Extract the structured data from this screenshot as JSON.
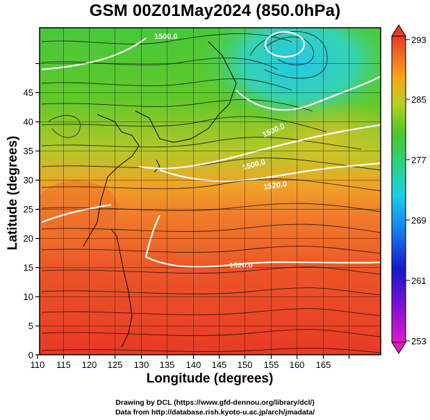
{
  "title": "GSM 00Z01May2024 (850.0hPa)",
  "x_axis": {
    "label": "Longitude (degrees)",
    "ticks": [
      "110",
      "115",
      "120",
      "125",
      "130",
      "135",
      "140",
      "145",
      "150",
      "155",
      "160",
      "165"
    ]
  },
  "y_axis": {
    "label": "Latitude  (degrees)",
    "ticks": [
      "0",
      "5",
      "10",
      "15",
      "20",
      "25",
      "30",
      "35",
      "40",
      "45"
    ]
  },
  "colorbar": {
    "ticks": [
      "253",
      "261",
      "269",
      "277",
      "285",
      "293"
    ],
    "min": 253,
    "max": 293
  },
  "contour_labels": [
    "1500.0",
    "1500.0",
    "1500.0",
    "1520.0",
    "1520.0"
  ],
  "credits": {
    "line1": "Drawing by DCL (https://www.gfd-dennou.org/library/dcl/)",
    "line2": "Data from http://database.rish.kyoto-u.ac.jp/arch/jmadata/"
  },
  "colors": {
    "warm": "#e84a2a",
    "mid": "#f2a020",
    "cool": "#5ccf2a",
    "cold": "#20c8e0"
  }
}
